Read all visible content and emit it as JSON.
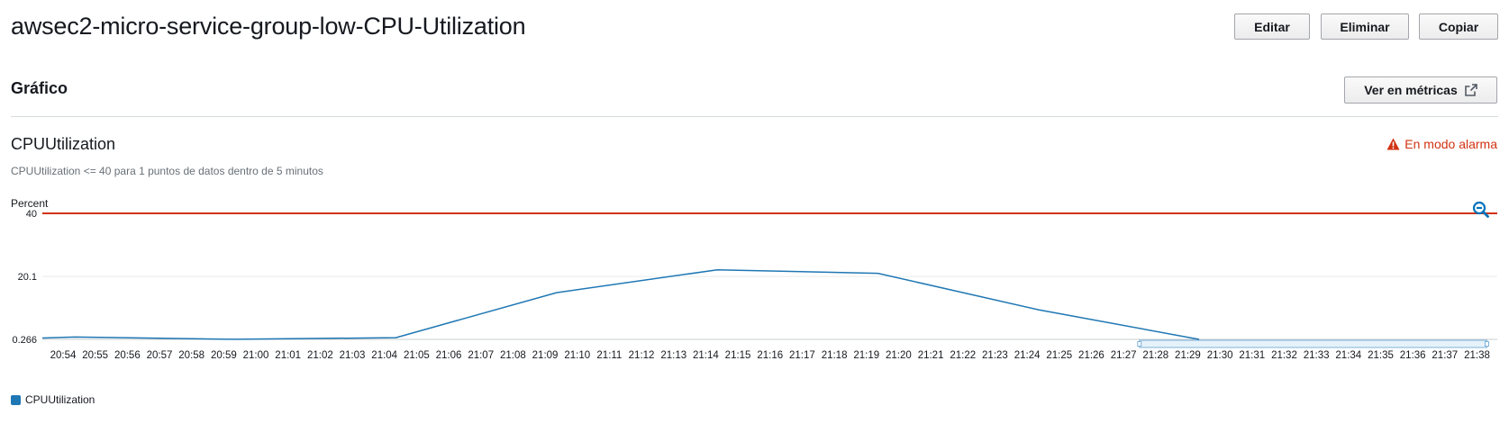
{
  "header": {
    "title": "awsec2-micro-service-group-low-CPU-Utilization",
    "edit_label": "Editar",
    "delete_label": "Eliminar",
    "copy_label": "Copiar"
  },
  "graph_section": {
    "title": "Gráfico",
    "view_metrics_label": "Ver en métricas",
    "metric_name": "CPUUtilization",
    "condition": "CPUUtilization <= 40 para 1 puntos de datos dentro de 5 minutos",
    "alarm_state": "En modo alarma",
    "alarm_color": "#d13212"
  },
  "icons": {
    "external_link": "external-link-icon",
    "warning": "warning-icon",
    "zoom_out": "zoom-out-icon"
  },
  "chart_data": {
    "type": "line",
    "ylabel": "Percent",
    "yticks": [
      0.266,
      20.1,
      40
    ],
    "ytick_labels": [
      "0.266",
      "20.1",
      "40"
    ],
    "ylim": [
      0.266,
      40
    ],
    "threshold": 40,
    "threshold_color": "#d13212",
    "series_color": "#1f77b4",
    "x_labels": [
      "20:54",
      "20:55",
      "20:56",
      "20:57",
      "20:58",
      "20:59",
      "21:00",
      "21:01",
      "21:02",
      "21:03",
      "21:04",
      "21:05",
      "21:06",
      "21:07",
      "21:08",
      "21:09",
      "21:10",
      "21:11",
      "21:12",
      "21:13",
      "21:14",
      "21:15",
      "21:16",
      "21:17",
      "21:18",
      "21:19",
      "21:20",
      "21:21",
      "21:22",
      "21:23",
      "21:24",
      "21:25",
      "21:26",
      "21:27",
      "21:28",
      "21:29",
      "21:30",
      "21:31",
      "21:32",
      "21:33",
      "21:34",
      "21:35",
      "21:36",
      "21:37",
      "21:38"
    ],
    "series": [
      {
        "name": "CPUUtilization",
        "points": [
          {
            "x": "20:54",
            "y": 0.7
          },
          {
            "x": "20:55",
            "y": 1.0
          },
          {
            "x": "21:00",
            "y": 0.3
          },
          {
            "x": "21:05",
            "y": 0.8
          },
          {
            "x": "21:10",
            "y": 15.0
          },
          {
            "x": "21:15",
            "y": 22.2
          },
          {
            "x": "21:20",
            "y": 21.1
          },
          {
            "x": "21:25",
            "y": 9.6
          },
          {
            "x": "21:30",
            "y": 0.266
          }
        ]
      }
    ],
    "range_selection": [
      "21:28",
      "21:38"
    ],
    "legend": "bottom-left"
  }
}
